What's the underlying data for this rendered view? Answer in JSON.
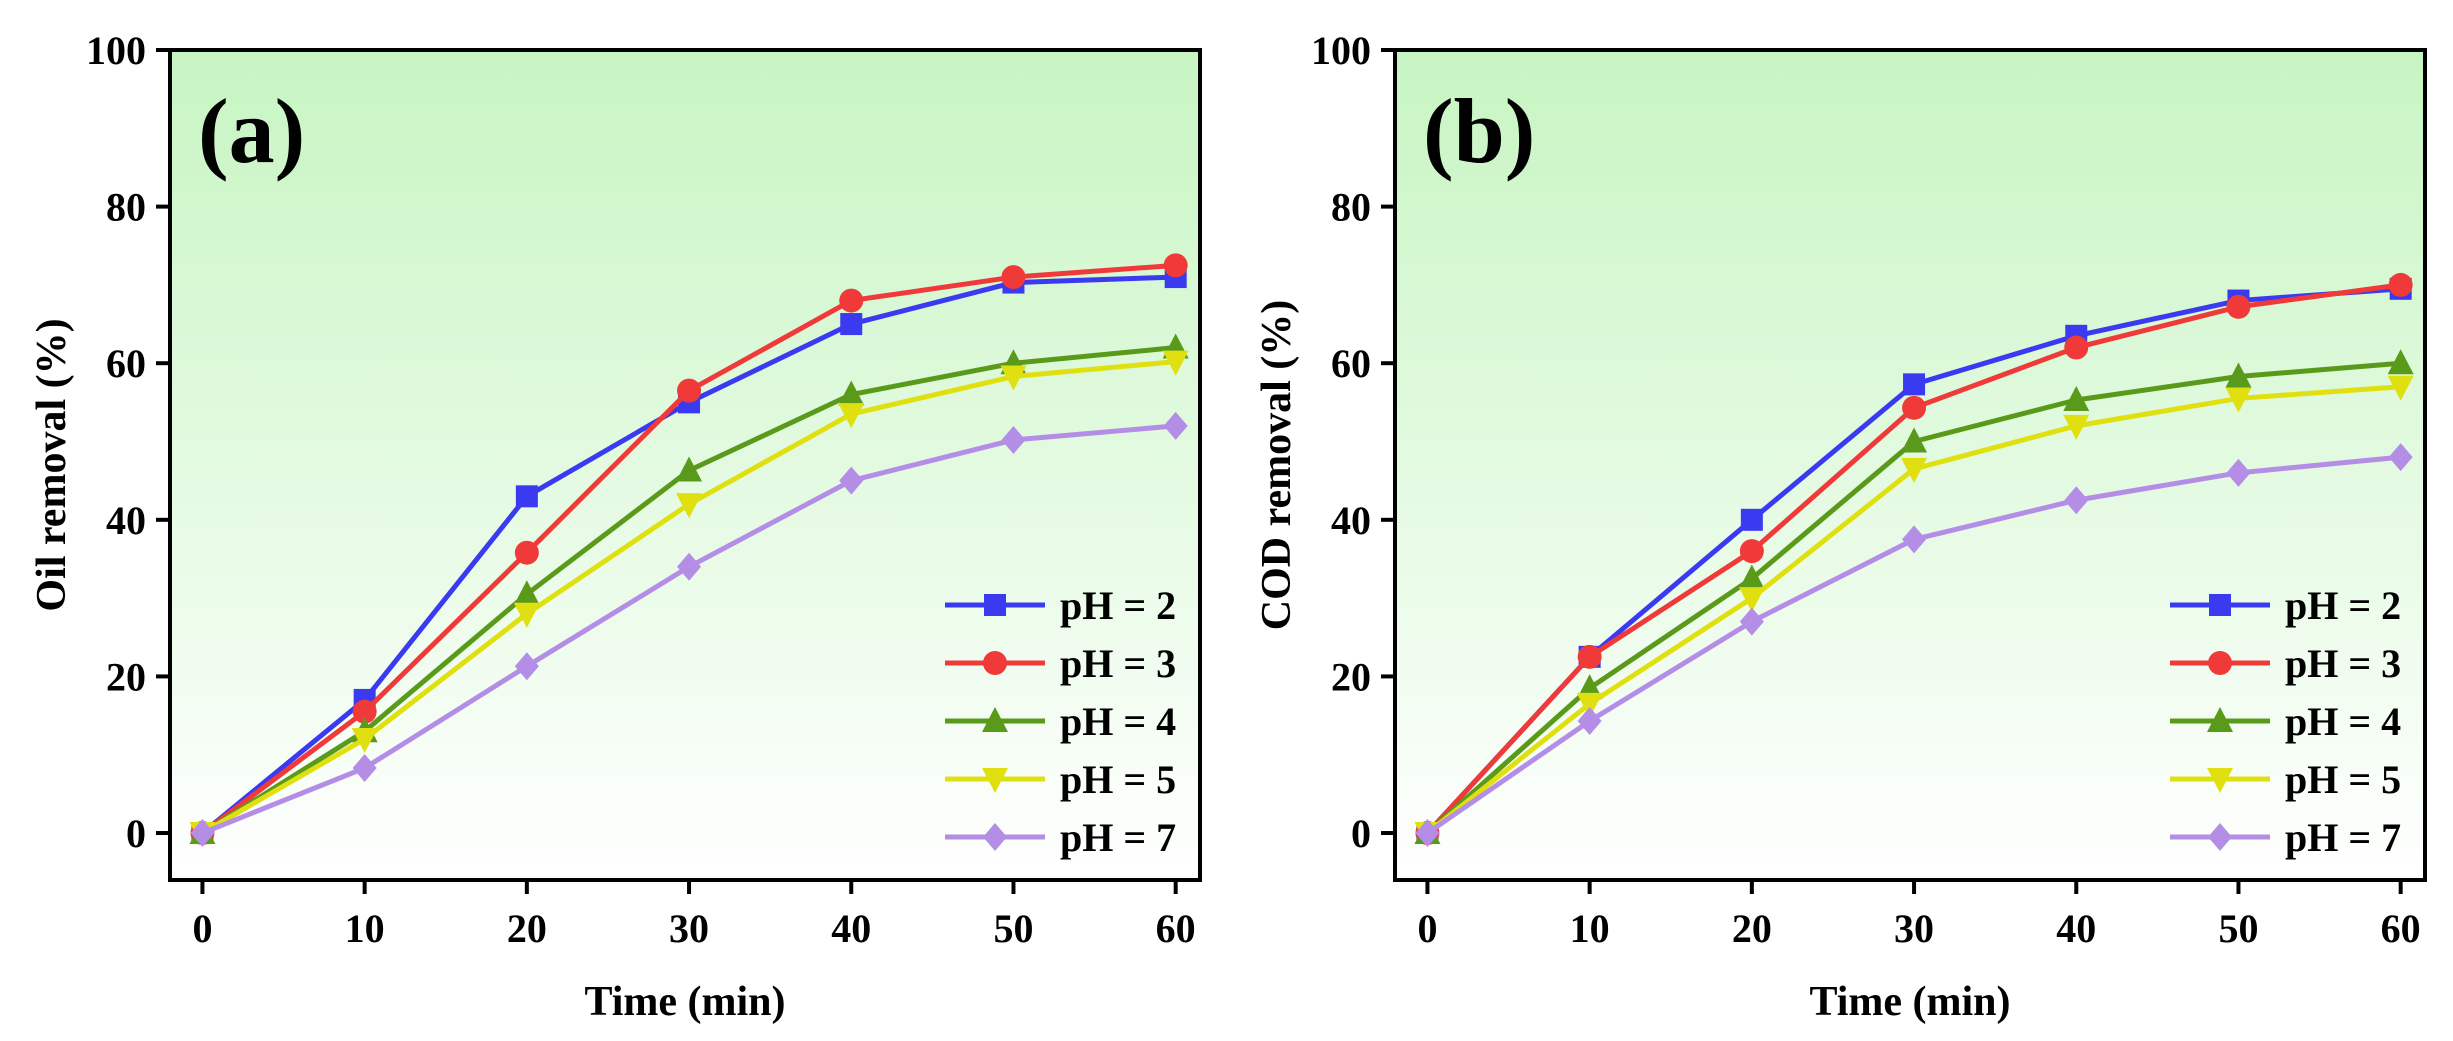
{
  "chart_data": [
    {
      "type": "line",
      "panel_label": "(a)",
      "xlabel": "Time (min)",
      "ylabel": "Oil removal (%)",
      "x": [
        0,
        10,
        20,
        30,
        40,
        50,
        60
      ],
      "xlim": [
        -2,
        61.5
      ],
      "ylim": [
        -6,
        100
      ],
      "xticks": [
        "0",
        "10",
        "20",
        "30",
        "40",
        "50",
        "60"
      ],
      "yticks": [
        "0",
        "20",
        "40",
        "60",
        "80",
        "100"
      ],
      "legend_position": "lower-right",
      "background": "green-gradient",
      "series": [
        {
          "name": "pH = 2",
          "color": "#3a3af0",
          "marker": "square",
          "values": [
            0,
            17.0,
            43.0,
            55.0,
            65.0,
            70.3,
            71.0
          ]
        },
        {
          "name": "pH = 3",
          "color": "#f03a3a",
          "marker": "circle",
          "values": [
            0,
            15.5,
            35.8,
            56.5,
            68.0,
            71.0,
            72.5
          ]
        },
        {
          "name": "pH = 4",
          "color": "#5a9a1a",
          "marker": "triangle-up",
          "values": [
            0,
            13.0,
            30.5,
            46.3,
            56.0,
            60.0,
            62.0
          ]
        },
        {
          "name": "pH = 5",
          "color": "#e0e010",
          "marker": "triangle-down",
          "values": [
            0,
            12.0,
            28.0,
            42.0,
            53.5,
            58.3,
            60.2
          ]
        },
        {
          "name": "pH = 7",
          "color": "#b48ee6",
          "marker": "diamond",
          "values": [
            0,
            8.3,
            21.3,
            34.0,
            45.0,
            50.2,
            52.0
          ]
        }
      ]
    },
    {
      "type": "line",
      "panel_label": "(b)",
      "xlabel": "Time (min)",
      "ylabel": "COD removal (%)",
      "x": [
        0,
        10,
        20,
        30,
        40,
        50,
        60
      ],
      "xlim": [
        -2,
        61.5
      ],
      "ylim": [
        -6,
        100
      ],
      "xticks": [
        "0",
        "10",
        "20",
        "30",
        "40",
        "50",
        "60"
      ],
      "yticks": [
        "0",
        "20",
        "40",
        "60",
        "80",
        "100"
      ],
      "legend_position": "lower-right",
      "background": "green-gradient",
      "series": [
        {
          "name": "pH = 2",
          "color": "#3a3af0",
          "marker": "square",
          "values": [
            0,
            22.5,
            40.0,
            57.3,
            63.5,
            68.0,
            69.5
          ]
        },
        {
          "name": "pH = 3",
          "color": "#f03a3a",
          "marker": "circle",
          "values": [
            0,
            22.5,
            36.0,
            54.3,
            62.0,
            67.2,
            70.0
          ]
        },
        {
          "name": "pH = 4",
          "color": "#5a9a1a",
          "marker": "triangle-up",
          "values": [
            0,
            18.5,
            32.5,
            50.0,
            55.3,
            58.3,
            60.0
          ]
        },
        {
          "name": "pH = 5",
          "color": "#e0e010",
          "marker": "triangle-down",
          "values": [
            0,
            16.5,
            30.0,
            46.5,
            52.0,
            55.5,
            57.0
          ]
        },
        {
          "name": "pH = 7",
          "color": "#b48ee6",
          "marker": "diamond",
          "values": [
            0,
            14.3,
            27.0,
            37.5,
            42.5,
            46.0,
            48.0
          ]
        }
      ]
    }
  ]
}
